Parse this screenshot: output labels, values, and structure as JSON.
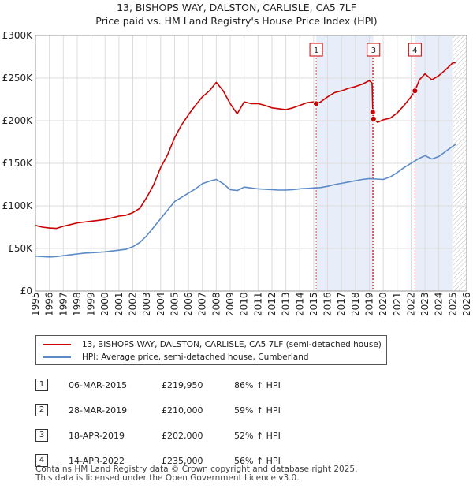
{
  "header": {
    "title_line1": "13, BISHOPS WAY, DALSTON, CARLISLE, CA5 7LF",
    "title_line2": "Price paid vs. HM Land Registry's House Price Index (HPI)"
  },
  "colors": {
    "property": "#cc0000",
    "hpi": "#5b8ac7",
    "band": "#e8eef9",
    "marker_line": "#cc0000",
    "future": "#bbbbbb"
  },
  "chart_data": {
    "type": "line",
    "title": "13, BISHOPS WAY, DALSTON, CARLISLE, CA5 7LF — Price paid vs. HM Land Registry's House Price Index (HPI)",
    "xlim": [
      1995,
      2026
    ],
    "ylim": [
      0,
      300000
    ],
    "y_ticks": [
      0,
      50000,
      100000,
      150000,
      200000,
      250000,
      300000
    ],
    "y_tick_labels": [
      "£0",
      "£50K",
      "£100K",
      "£150K",
      "£200K",
      "£250K",
      "£300K"
    ],
    "x_ticks": [
      1995,
      1996,
      1997,
      1998,
      1999,
      2000,
      2001,
      2002,
      2003,
      2004,
      2005,
      2006,
      2007,
      2008,
      2009,
      2010,
      2011,
      2012,
      2013,
      2014,
      2015,
      2016,
      2017,
      2018,
      2019,
      2020,
      2021,
      2022,
      2023,
      2024,
      2025,
      2026
    ],
    "grid": true,
    "shaded_ranges": [
      [
        2015.18,
        2019.3
      ],
      [
        2022.28,
        2024.95
      ]
    ],
    "forecast_start": 2025.0,
    "series": [
      {
        "name": "13, BISHOPS WAY, DALSTON, CARLISLE, CA5 7LF (semi-detached house)",
        "points": [
          [
            1995.0,
            77000
          ],
          [
            1995.5,
            75000
          ],
          [
            1996.0,
            74000
          ],
          [
            1996.5,
            73500
          ],
          [
            1997.0,
            76000
          ],
          [
            1997.5,
            78000
          ],
          [
            1998.0,
            80000
          ],
          [
            1998.5,
            81000
          ],
          [
            1999.0,
            82000
          ],
          [
            1999.5,
            83000
          ],
          [
            2000.0,
            84000
          ],
          [
            2000.5,
            86000
          ],
          [
            2001.0,
            88000
          ],
          [
            2001.5,
            89000
          ],
          [
            2002.0,
            92000
          ],
          [
            2002.5,
            97000
          ],
          [
            2003.0,
            110000
          ],
          [
            2003.5,
            125000
          ],
          [
            2004.0,
            145000
          ],
          [
            2004.5,
            160000
          ],
          [
            2005.0,
            180000
          ],
          [
            2005.5,
            195000
          ],
          [
            2006.0,
            207000
          ],
          [
            2006.5,
            218000
          ],
          [
            2007.0,
            228000
          ],
          [
            2007.5,
            235000
          ],
          [
            2008.0,
            245000
          ],
          [
            2008.5,
            235000
          ],
          [
            2009.0,
            220000
          ],
          [
            2009.5,
            208000
          ],
          [
            2010.0,
            222000
          ],
          [
            2010.5,
            220000
          ],
          [
            2011.0,
            220000
          ],
          [
            2011.5,
            218000
          ],
          [
            2012.0,
            215000
          ],
          [
            2012.5,
            214000
          ],
          [
            2013.0,
            213000
          ],
          [
            2013.5,
            215000
          ],
          [
            2014.0,
            218000
          ],
          [
            2014.5,
            221000
          ],
          [
            2015.0,
            222000
          ],
          [
            2015.18,
            219950
          ],
          [
            2015.5,
            222000
          ],
          [
            2016.0,
            228000
          ],
          [
            2016.5,
            233000
          ],
          [
            2017.0,
            235000
          ],
          [
            2017.5,
            238000
          ],
          [
            2018.0,
            240000
          ],
          [
            2018.5,
            243000
          ],
          [
            2019.0,
            247000
          ],
          [
            2019.2,
            244000
          ],
          [
            2019.25,
            210000
          ],
          [
            2019.3,
            202000
          ],
          [
            2019.6,
            198000
          ],
          [
            2020.0,
            201000
          ],
          [
            2020.5,
            203000
          ],
          [
            2021.0,
            209000
          ],
          [
            2021.5,
            218000
          ],
          [
            2022.0,
            228000
          ],
          [
            2022.28,
            235000
          ],
          [
            2022.6,
            248000
          ],
          [
            2023.0,
            255000
          ],
          [
            2023.5,
            248000
          ],
          [
            2024.0,
            253000
          ],
          [
            2024.5,
            260000
          ],
          [
            2025.0,
            268000
          ],
          [
            2025.2,
            268000
          ]
        ]
      },
      {
        "name": "HPI: Average price, semi-detached house, Cumberland",
        "points": [
          [
            1995.0,
            41000
          ],
          [
            1995.5,
            40500
          ],
          [
            1996.0,
            40000
          ],
          [
            1996.5,
            40500
          ],
          [
            1997.0,
            41500
          ],
          [
            1997.5,
            42500
          ],
          [
            1998.0,
            43500
          ],
          [
            1998.5,
            44500
          ],
          [
            1999.0,
            45000
          ],
          [
            1999.5,
            45500
          ],
          [
            2000.0,
            46000
          ],
          [
            2000.5,
            47000
          ],
          [
            2001.0,
            48000
          ],
          [
            2001.5,
            49000
          ],
          [
            2002.0,
            52000
          ],
          [
            2002.5,
            57000
          ],
          [
            2003.0,
            65000
          ],
          [
            2003.5,
            75000
          ],
          [
            2004.0,
            85000
          ],
          [
            2004.5,
            95000
          ],
          [
            2005.0,
            105000
          ],
          [
            2005.5,
            110000
          ],
          [
            2006.0,
            115000
          ],
          [
            2006.5,
            120000
          ],
          [
            2007.0,
            126000
          ],
          [
            2007.5,
            129000
          ],
          [
            2008.0,
            131000
          ],
          [
            2008.5,
            126000
          ],
          [
            2009.0,
            119000
          ],
          [
            2009.5,
            118000
          ],
          [
            2010.0,
            122000
          ],
          [
            2010.5,
            121000
          ],
          [
            2011.0,
            120000
          ],
          [
            2011.5,
            119500
          ],
          [
            2012.0,
            119000
          ],
          [
            2012.5,
            118500
          ],
          [
            2013.0,
            118500
          ],
          [
            2013.5,
            119000
          ],
          [
            2014.0,
            120000
          ],
          [
            2014.5,
            120500
          ],
          [
            2015.0,
            121000
          ],
          [
            2015.5,
            121500
          ],
          [
            2016.0,
            123000
          ],
          [
            2016.5,
            125000
          ],
          [
            2017.0,
            126500
          ],
          [
            2017.5,
            128000
          ],
          [
            2018.0,
            129500
          ],
          [
            2018.5,
            131000
          ],
          [
            2019.0,
            132000
          ],
          [
            2019.5,
            131500
          ],
          [
            2020.0,
            131000
          ],
          [
            2020.5,
            134000
          ],
          [
            2021.0,
            139000
          ],
          [
            2021.5,
            145000
          ],
          [
            2022.0,
            150000
          ],
          [
            2022.5,
            155000
          ],
          [
            2023.0,
            159000
          ],
          [
            2023.5,
            155000
          ],
          [
            2024.0,
            158000
          ],
          [
            2024.5,
            164000
          ],
          [
            2025.0,
            170000
          ],
          [
            2025.2,
            172000
          ]
        ]
      }
    ],
    "sales": [
      {
        "label": "1",
        "x": 2015.18,
        "y": 219950
      },
      {
        "label": "2",
        "x": 2019.24,
        "y": 210000
      },
      {
        "label": "3",
        "x": 2019.3,
        "y": 202000
      },
      {
        "label": "4",
        "x": 2022.28,
        "y": 235000
      }
    ],
    "box_labels": [
      {
        "label": "1",
        "x": 2015.18
      },
      {
        "label": "3",
        "x": 2019.3
      },
      {
        "label": "4",
        "x": 2022.28
      }
    ]
  },
  "legend": {
    "property": "13, BISHOPS WAY, DALSTON, CARLISLE, CA5 7LF (semi-detached house)",
    "hpi": "HPI: Average price, semi-detached house, Cumberland"
  },
  "sales_table": [
    {
      "num": "1",
      "date": "06-MAR-2015",
      "price": "£219,950",
      "delta": "86% ↑ HPI"
    },
    {
      "num": "2",
      "date": "28-MAR-2019",
      "price": "£210,000",
      "delta": "59% ↑ HPI"
    },
    {
      "num": "3",
      "date": "18-APR-2019",
      "price": "£202,000",
      "delta": "52% ↑ HPI"
    },
    {
      "num": "4",
      "date": "14-APR-2022",
      "price": "£235,000",
      "delta": "56% ↑ HPI"
    }
  ],
  "footer": {
    "line1": "Contains HM Land Registry data © Crown copyright and database right 2025.",
    "line2": "This data is licensed under the Open Government Licence v3.0."
  }
}
